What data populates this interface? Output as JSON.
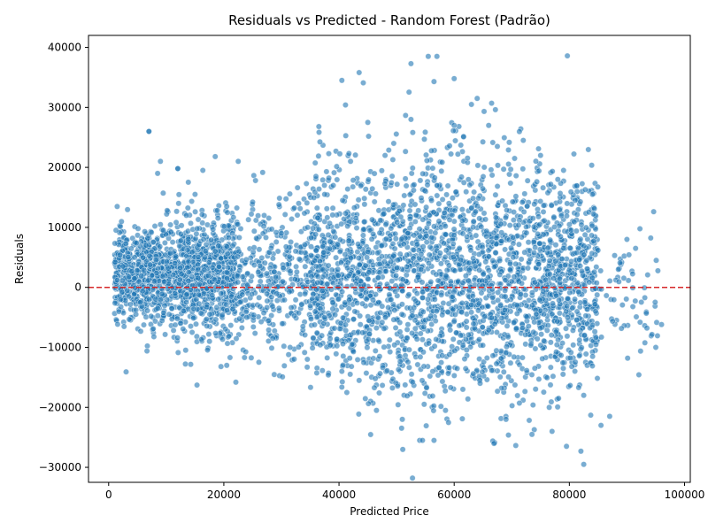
{
  "chart_data": {
    "type": "scatter",
    "title": "Residuals vs Predicted - Random Forest (Padrão)",
    "xlabel": "Predicted Price",
    "ylabel": "Residuals",
    "xlim": [
      -3500,
      101000
    ],
    "ylim": [
      -32500,
      42000
    ],
    "xticks": [
      0,
      20000,
      40000,
      60000,
      80000,
      100000
    ],
    "xtick_labels": [
      "0",
      "20000",
      "40000",
      "60000",
      "80000",
      "100000"
    ],
    "yticks": [
      -30000,
      -20000,
      -10000,
      0,
      10000,
      20000,
      30000,
      40000
    ],
    "ytick_labels": [
      "−30000",
      "−20000",
      "−10000",
      "0",
      "10000",
      "20000",
      "30000",
      "40000"
    ],
    "grid": false,
    "colors": {
      "point": "#1f77b4",
      "point_edge": "#ffffff",
      "reference_line": "#d62728"
    },
    "reference_line": {
      "y": 0,
      "style": "dashed"
    },
    "points_note": "Approx. several thousand points; representative sample listed",
    "series": [
      {
        "x": [
          1500,
          2500,
          3500,
          4500,
          5500,
          6500,
          7500,
          8500,
          9500,
          10500,
          11500,
          12500,
          13500,
          14500,
          15500,
          16500,
          17500,
          18500,
          19500,
          20500,
          7000,
          9000,
          12000,
          15000,
          18500,
          20500,
          22500,
          21500,
          24000,
          25500,
          27000,
          28500,
          30000,
          31500,
          33000,
          34500,
          36000,
          37500,
          39000,
          40500,
          42000,
          43500,
          45000,
          46500,
          48000,
          49500,
          51000,
          52500,
          54000,
          55500,
          57000,
          58500,
          60000,
          61500,
          63000,
          64500,
          66000,
          67500,
          69000,
          70500,
          72000,
          73500,
          75000,
          76500,
          78000,
          79500,
          81000,
          82500,
          84000,
          85500,
          87000,
          88500,
          90000,
          91500,
          95000,
          96000,
          40500,
          43500,
          52500,
          56500,
          57000,
          60000,
          64000,
          66500,
          54500,
          56500,
          79000,
          82000,
          82500,
          77000,
          74000,
          36500,
          37500,
          19500,
          20500,
          12000,
          7000,
          8500
        ],
        "y": [
          1200,
          3500,
          -1500,
          5000,
          -2500,
          7000,
          2000,
          -3500,
          9500,
          -4500,
          4000,
          -6000,
          12000,
          -7500,
          3000,
          8000,
          -9000,
          6000,
          -1000,
          2500,
          26000,
          21000,
          19800,
          15500,
          21800,
          13500,
          21000,
          9000,
          -5000,
          17800,
          12000,
          -8500,
          9000,
          -10000,
          14000,
          -12000,
          18500,
          -5000,
          17000,
          -14000,
          21000,
          -15500,
          27500,
          -20500,
          22000,
          24000,
          -22000,
          28000,
          -25500,
          38500,
          17000,
          -20500,
          34800,
          -17000,
          30500,
          -16000,
          27000,
          23500,
          -22000,
          21500,
          24500,
          -24500,
          22000,
          -20000,
          18000,
          -26500,
          14500,
          -29500,
          15500,
          -23000,
          -21500,
          3000,
          8000,
          6500,
          -10000,
          -6200,
          34500,
          35800,
          37300,
          34300,
          38500,
          27000,
          31500,
          30700,
          -25500,
          -25500,
          19500,
          -27300,
          -18000,
          -24000,
          -13500,
          26800,
          15500,
          -13200,
          -13000,
          19800,
          26000,
          19000
        ]
      }
    ]
  }
}
